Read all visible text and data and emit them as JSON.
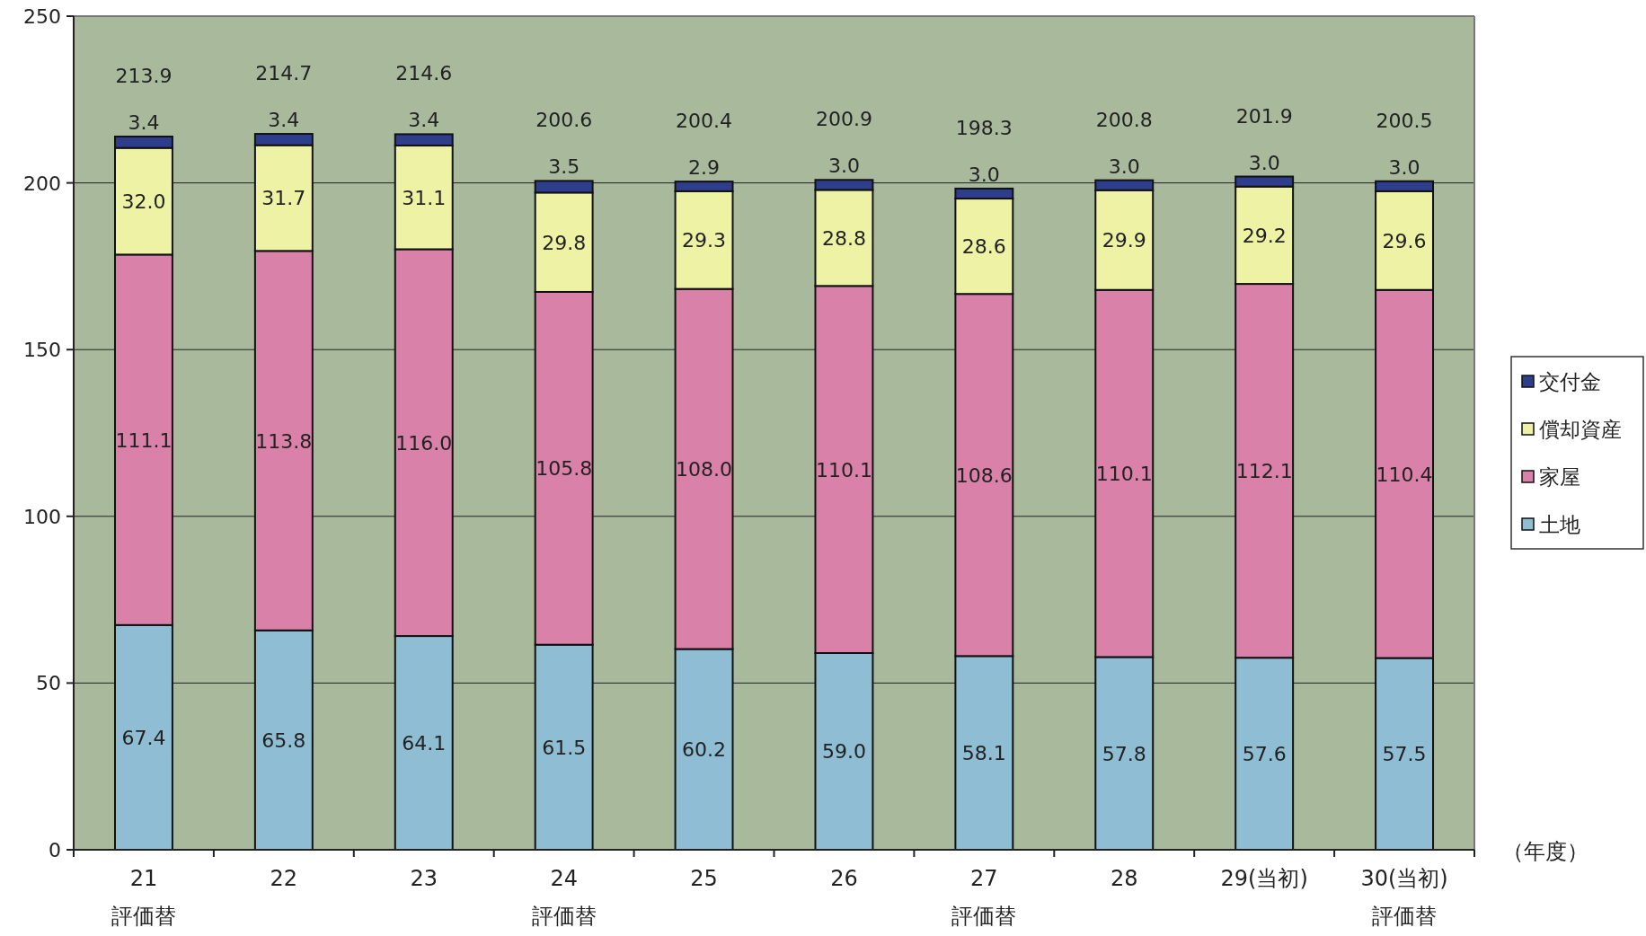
{
  "chart_data": {
    "type": "bar",
    "stacked": true,
    "xlabel": "（年度）",
    "categories": [
      "21\n評価替",
      "22",
      "23",
      "24\n評価替",
      "25",
      "26",
      "27\n評価替",
      "28",
      "29(当初)",
      "30(当初)\n評価替"
    ],
    "series": [
      {
        "name": "土地",
        "color": "#8fbdd3",
        "values": [
          67.4,
          65.8,
          64.1,
          61.5,
          60.2,
          59.0,
          58.1,
          57.8,
          57.6,
          57.5
        ],
        "value_labels": [
          "67.4",
          "65.8",
          "64.1",
          "61.5",
          "60.2",
          "59.0",
          "58.1",
          "57.8",
          "57.6",
          "57.5"
        ]
      },
      {
        "name": "家屋",
        "color": "#d981a8",
        "values": [
          111.1,
          113.8,
          116.0,
          105.8,
          108.0,
          110.1,
          108.6,
          110.1,
          112.1,
          110.4
        ],
        "value_labels": [
          "111.1",
          "113.8",
          "116.0",
          "105.8",
          "108.0",
          "110.1",
          "108.6",
          "110.1",
          "112.1",
          "110.4"
        ]
      },
      {
        "name": "償却資産",
        "color": "#eef2a4",
        "values": [
          32.0,
          31.7,
          31.1,
          29.8,
          29.3,
          28.8,
          28.6,
          29.9,
          29.2,
          29.6
        ],
        "value_labels": [
          "32.0",
          "31.7",
          "31.1",
          "29.8",
          "29.3",
          "28.8",
          "28.6",
          "29.9",
          "29.2",
          "29.6"
        ]
      },
      {
        "name": "交付金",
        "color": "#2e3d8c",
        "values": [
          3.4,
          3.4,
          3.4,
          3.5,
          2.9,
          3.0,
          3.0,
          3.0,
          3.0,
          3.0
        ],
        "value_labels": [
          "3.4",
          "3.4",
          "3.4",
          "3.5",
          "2.9",
          "3.0",
          "3.0",
          "3.0",
          "3.0",
          "3.0"
        ]
      }
    ],
    "totals": [
      "213.9",
      "214.7",
      "214.6",
      "200.6",
      "200.4",
      "200.9",
      "198.3",
      "200.8",
      "201.9",
      "200.5"
    ],
    "ylim": [
      0,
      250
    ],
    "yticks": [
      0,
      50,
      100,
      150,
      200,
      250
    ],
    "grid": "y",
    "legend": "right"
  }
}
